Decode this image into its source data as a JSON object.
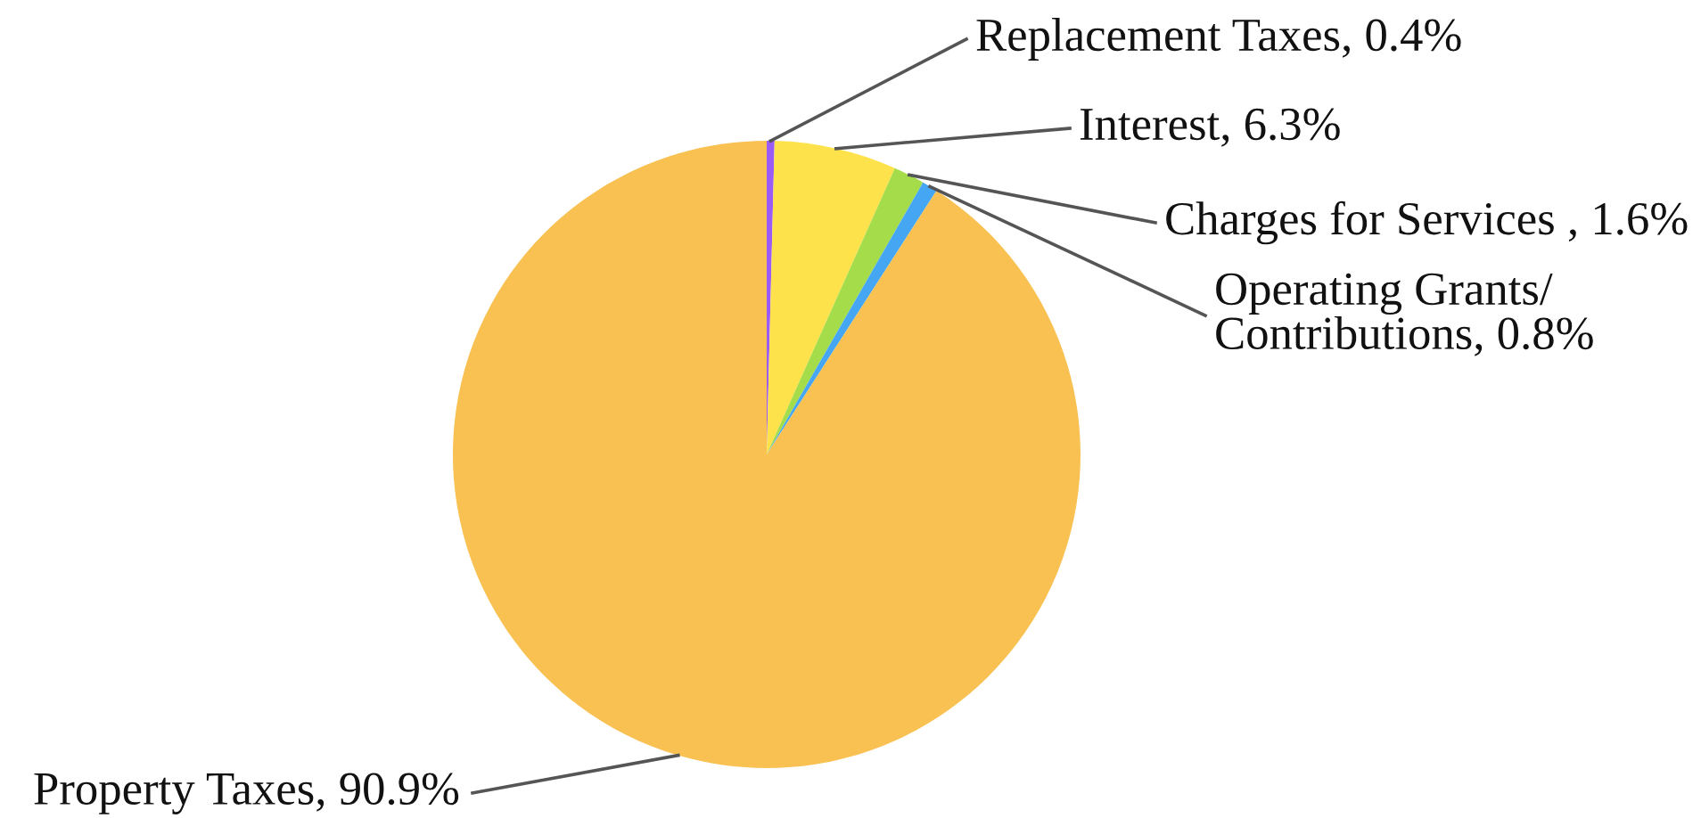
{
  "chart_data": {
    "type": "pie",
    "categories": [
      "Replacement Taxes",
      "Interest",
      "Charges for Services ",
      "Operating Grants/\nContributions",
      "Property Taxes"
    ],
    "values": [
      0.4,
      6.3,
      1.6,
      0.8,
      90.9
    ],
    "colors": [
      "#9b5cf6",
      "#fde24c",
      "#a5dd4a",
      "#45a6f4",
      "#f9c152"
    ],
    "legend": false,
    "value_labels": [
      "0.4%",
      "6.3%",
      "1.6%",
      "0.8%",
      "90.9%"
    ]
  }
}
